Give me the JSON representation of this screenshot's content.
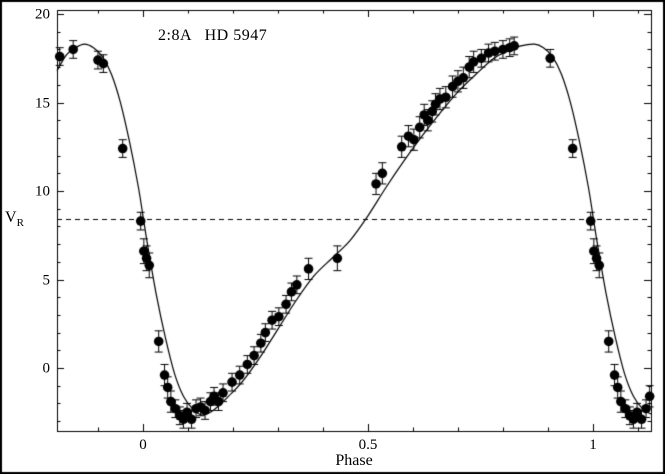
{
  "figure": {
    "title": "2:8A   HD 5947",
    "xlabel": "Phase",
    "ylabel_main": "V",
    "ylabel_sub": "R"
  },
  "chart_data": {
    "type": "scatter",
    "title": "2:8A HD 5947",
    "xlabel": "Phase",
    "ylabel": "V_R",
    "xlim": [
      -0.191,
      1.129
    ],
    "ylim": [
      -3.56,
      20.23
    ],
    "x_ticks": [
      {
        "v": 0,
        "label": "0"
      },
      {
        "v": 0.5,
        "label": "0.5"
      },
      {
        "v": 1,
        "label": "1"
      }
    ],
    "y_ticks": [
      {
        "v": 0,
        "label": "0"
      },
      {
        "v": 5,
        "label": "5"
      },
      {
        "v": 10,
        "label": "10"
      },
      {
        "v": 15,
        "label": "15"
      },
      {
        "v": 20,
        "label": "20"
      }
    ],
    "x_minor_step": 0.1,
    "y_minor_step": 1,
    "grid": false,
    "background": "#ffffff",
    "line_color": "#000000",
    "marker_color": "#000000",
    "reference_line": {
      "style": "dashed",
      "y": 8.4
    },
    "curve": [
      [
        -0.191,
        16.8
      ],
      [
        -0.17,
        17.7
      ],
      [
        -0.15,
        18.1
      ],
      [
        -0.13,
        18.3
      ],
      [
        -0.11,
        18.1
      ],
      [
        -0.09,
        17.6
      ],
      [
        -0.07,
        16.6
      ],
      [
        -0.05,
        15.0
      ],
      [
        -0.03,
        12.8
      ],
      [
        -0.01,
        10.2
      ],
      [
        0.0,
        8.6
      ],
      [
        0.01,
        7.0
      ],
      [
        0.03,
        4.1
      ],
      [
        0.05,
        1.7
      ],
      [
        0.07,
        -0.3
      ],
      [
        0.09,
        -1.6
      ],
      [
        0.11,
        -2.3
      ],
      [
        0.13,
        -2.65
      ],
      [
        0.15,
        -2.5
      ],
      [
        0.17,
        -2.1
      ],
      [
        0.19,
        -1.6
      ],
      [
        0.22,
        -0.8
      ],
      [
        0.26,
        0.6
      ],
      [
        0.3,
        2.2
      ],
      [
        0.34,
        3.8
      ],
      [
        0.38,
        5.2
      ],
      [
        0.42,
        6.2
      ],
      [
        0.46,
        7.2
      ],
      [
        0.5,
        8.6
      ],
      [
        0.54,
        10.2
      ],
      [
        0.58,
        11.7
      ],
      [
        0.62,
        13.1
      ],
      [
        0.66,
        14.4
      ],
      [
        0.7,
        15.6
      ],
      [
        0.74,
        16.6
      ],
      [
        0.78,
        17.5
      ],
      [
        0.81,
        17.9
      ],
      [
        0.84,
        18.2
      ],
      [
        0.87,
        18.3
      ],
      [
        0.89,
        18.1
      ],
      [
        0.91,
        17.6
      ],
      [
        0.93,
        16.6
      ],
      [
        0.95,
        15.0
      ],
      [
        0.97,
        12.8
      ],
      [
        0.99,
        10.2
      ],
      [
        1.0,
        8.6
      ],
      [
        1.01,
        7.0
      ],
      [
        1.03,
        4.1
      ],
      [
        1.05,
        1.7
      ],
      [
        1.07,
        -0.3
      ],
      [
        1.09,
        -1.6
      ],
      [
        1.11,
        -2.3
      ],
      [
        1.129,
        -2.6
      ]
    ],
    "points": [
      [
        -0.185,
        17.6,
        0.5
      ],
      [
        -0.155,
        18.0,
        0.5
      ],
      [
        -0.1,
        17.4,
        0.5
      ],
      [
        -0.088,
        17.2,
        0.5
      ],
      [
        -0.045,
        12.4,
        0.5
      ],
      [
        -0.005,
        8.3,
        0.5
      ],
      [
        0.002,
        6.6,
        0.7
      ],
      [
        0.008,
        6.2,
        0.7
      ],
      [
        0.014,
        5.8,
        0.7
      ],
      [
        0.035,
        1.5,
        0.6
      ],
      [
        0.048,
        -0.4,
        0.6
      ],
      [
        0.055,
        -1.1,
        0.6
      ],
      [
        0.062,
        -1.9,
        0.6
      ],
      [
        0.072,
        -2.3,
        0.5
      ],
      [
        0.082,
        -2.7,
        0.5
      ],
      [
        0.09,
        -2.9,
        0.5
      ],
      [
        0.098,
        -2.5,
        0.5
      ],
      [
        0.108,
        -2.9,
        0.5
      ],
      [
        0.118,
        -2.3,
        0.5
      ],
      [
        0.128,
        -2.2,
        0.5
      ],
      [
        0.138,
        -2.4,
        0.5
      ],
      [
        0.15,
        -1.9,
        0.5
      ],
      [
        0.158,
        -1.6,
        0.5
      ],
      [
        0.168,
        -1.9,
        0.5
      ],
      [
        0.178,
        -1.4,
        0.5
      ],
      [
        0.198,
        -0.8,
        0.5
      ],
      [
        0.215,
        -0.4,
        0.5
      ],
      [
        0.232,
        0.2,
        0.5
      ],
      [
        0.247,
        0.7,
        0.5
      ],
      [
        0.262,
        1.4,
        0.5
      ],
      [
        0.272,
        2.0,
        0.5
      ],
      [
        0.287,
        2.7,
        0.5
      ],
      [
        0.302,
        2.9,
        0.5
      ],
      [
        0.318,
        3.6,
        0.5
      ],
      [
        0.33,
        4.3,
        0.5
      ],
      [
        0.342,
        4.7,
        0.5
      ],
      [
        0.368,
        5.6,
        0.6
      ],
      [
        0.432,
        6.2,
        0.7
      ],
      [
        0.518,
        10.4,
        0.6
      ],
      [
        0.532,
        11.0,
        0.6
      ],
      [
        0.575,
        12.5,
        0.6
      ],
      [
        0.59,
        13.1,
        0.6
      ],
      [
        0.602,
        12.9,
        0.6
      ],
      [
        0.615,
        13.6,
        0.6
      ],
      [
        0.625,
        14.3,
        0.6
      ],
      [
        0.633,
        14.0,
        0.6
      ],
      [
        0.643,
        14.5,
        0.6
      ],
      [
        0.65,
        14.9,
        0.6
      ],
      [
        0.66,
        15.2,
        0.6
      ],
      [
        0.673,
        15.3,
        0.6
      ],
      [
        0.688,
        15.9,
        0.6
      ],
      [
        0.7,
        16.2,
        0.6
      ],
      [
        0.712,
        16.4,
        0.6
      ],
      [
        0.725,
        17.0,
        0.6
      ],
      [
        0.735,
        17.3,
        0.6
      ],
      [
        0.752,
        17.5,
        0.5
      ],
      [
        0.768,
        17.8,
        0.5
      ],
      [
        0.782,
        17.9,
        0.5
      ],
      [
        0.8,
        18.0,
        0.5
      ],
      [
        0.815,
        18.1,
        0.5
      ],
      [
        0.825,
        18.2,
        0.5
      ],
      [
        0.905,
        17.5,
        0.5
      ],
      [
        0.955,
        12.4,
        0.5
      ],
      [
        0.995,
        8.3,
        0.5
      ],
      [
        1.002,
        6.6,
        0.7
      ],
      [
        1.008,
        6.2,
        0.7
      ],
      [
        1.014,
        5.8,
        0.7
      ],
      [
        1.035,
        1.5,
        0.6
      ],
      [
        1.048,
        -0.4,
        0.6
      ],
      [
        1.055,
        -1.1,
        0.6
      ],
      [
        1.062,
        -1.9,
        0.6
      ],
      [
        1.072,
        -2.3,
        0.5
      ],
      [
        1.082,
        -2.7,
        0.5
      ],
      [
        1.09,
        -2.9,
        0.5
      ],
      [
        1.098,
        -2.5,
        0.5
      ],
      [
        1.108,
        -2.9,
        0.5
      ],
      [
        1.118,
        -2.3,
        0.5
      ],
      [
        1.126,
        -1.6,
        0.6
      ]
    ]
  }
}
